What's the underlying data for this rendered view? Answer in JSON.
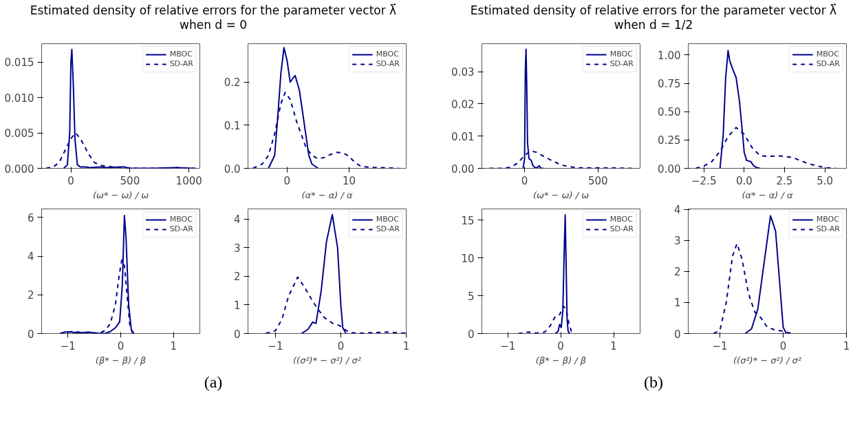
{
  "chart_data": [
    {
      "type": "line",
      "title": "Estimated density of relative errors for the parameter vector λ⃗",
      "subtitle": "when d = 0",
      "annotations": [
        "(a)"
      ],
      "xlabel": "(ω* − ω) / ω",
      "xlim": [
        -248,
        1092
      ],
      "xticks": [
        0,
        500,
        1000
      ],
      "ylim": [
        0,
        0.0176
      ],
      "yticks": [
        {
          "value": 0,
          "label": "0.000"
        },
        {
          "value": 0.005,
          "label": "0.005"
        },
        {
          "value": 0.01,
          "label": "0.010"
        },
        {
          "value": 0.015,
          "label": "0.015"
        }
      ],
      "legend": "top right",
      "series": [
        {
          "name": "MBOC",
          "color": "#00008b",
          "line_style": "solid",
          "x": [
            -60,
            -30,
            -10,
            0,
            8,
            20,
            35,
            55,
            80,
            120,
            160,
            250,
            300,
            420,
            450,
            500,
            700,
            900,
            1000,
            1050
          ],
          "values": [
            0,
            0.0005,
            0.005,
            0.015,
            0.0168,
            0.012,
            0.004,
            0.0005,
            0.0002,
            0.0002,
            0.0001,
            0.0002,
            0.0001,
            0.0002,
            0.0002,
            0,
            0,
            0.0001,
            0,
            0
          ]
        },
        {
          "name": "SD-AR",
          "color": "#00008b",
          "line_style": "dashed",
          "x": [
            -210,
            -150,
            -100,
            -50,
            0,
            40,
            80,
            150,
            200,
            260,
            350,
            450,
            500,
            800,
            900,
            1000,
            1080
          ],
          "values": [
            0,
            0.0002,
            0.0008,
            0.0025,
            0.0042,
            0.005,
            0.0042,
            0.002,
            0.0008,
            0.0004,
            0.0002,
            0.0001,
            0,
            0,
            0.0001,
            0,
            0
          ]
        }
      ]
    },
    {
      "type": "line",
      "xlabel": "(α* − α) / α",
      "xlim": [
        -6.3,
        19.2
      ],
      "xticks": [
        0,
        10
      ],
      "ylim": [
        0,
        0.289
      ],
      "yticks": [
        {
          "value": 0,
          "label": "0.0"
        },
        0.1,
        0.2
      ],
      "legend": "top right",
      "series": [
        {
          "name": "MBOC",
          "color": "#00008b",
          "line_style": "solid",
          "x": [
            -3,
            -2,
            -1.5,
            -1,
            -0.5,
            0,
            0.5,
            1,
            1.3,
            2,
            3,
            3.5,
            4,
            5
          ],
          "values": [
            0,
            0.03,
            0.12,
            0.22,
            0.28,
            0.25,
            0.2,
            0.21,
            0.215,
            0.18,
            0.08,
            0.03,
            0.01,
            0
          ]
        },
        {
          "name": "SD-AR",
          "color": "#00008b",
          "line_style": "dashed",
          "x": [
            -5.5,
            -4,
            -3,
            -2,
            -1,
            -0.3,
            0.5,
            1.5,
            3,
            4,
            5,
            6,
            7,
            8,
            9,
            10,
            11,
            12,
            14,
            16,
            18
          ],
          "values": [
            0,
            0.01,
            0.03,
            0.08,
            0.15,
            0.176,
            0.16,
            0.11,
            0.05,
            0.03,
            0.022,
            0.025,
            0.032,
            0.037,
            0.036,
            0.028,
            0.012,
            0.004,
            0.002,
            0.001,
            0
          ]
        }
      ]
    },
    {
      "type": "line",
      "xlabel": "(β* − β) / β",
      "xlim": [
        -1.5,
        1.5
      ],
      "xticks": [
        -1,
        0,
        1
      ],
      "ylim": [
        0,
        6.44
      ],
      "yticks": [
        0,
        2,
        4,
        6
      ],
      "legend": "top right",
      "series": [
        {
          "name": "MBOC",
          "color": "#00008b",
          "line_style": "solid",
          "x": [
            -1.15,
            -1.05,
            -0.95,
            -0.8,
            -0.7,
            -0.6,
            -0.5,
            -0.3,
            -0.2,
            -0.1,
            -0.02,
            0.03,
            0.07,
            0.1,
            0.15,
            0.2,
            0.25
          ],
          "values": [
            0,
            0.08,
            0.08,
            0.03,
            0.05,
            0.07,
            0.02,
            0,
            0.1,
            0.3,
            0.6,
            2.5,
            6.1,
            5,
            1.5,
            0.2,
            0
          ]
        },
        {
          "name": "SD-AR",
          "color": "#00008b",
          "line_style": "dashed",
          "x": [
            -1.15,
            -1,
            -0.9,
            -0.7,
            -0.6,
            -0.4,
            -0.3,
            -0.2,
            -0.1,
            -0.03,
            0.02,
            0.07,
            0.12,
            0.17,
            0.22,
            0.27
          ],
          "values": [
            0,
            0.08,
            0.1,
            0.05,
            0.06,
            0.02,
            0.15,
            0.5,
            1.5,
            3,
            3.8,
            3.5,
            2,
            0.5,
            0.05,
            0
          ]
        }
      ]
    },
    {
      "type": "line",
      "xlabel": "((σ²)* − σ²) / σ²",
      "xlim": [
        -1.42,
        1
      ],
      "xticks": [
        -1,
        0,
        1
      ],
      "ylim": [
        0,
        4.35
      ],
      "yticks": [
        0,
        1,
        2,
        3,
        4
      ],
      "legend": "top right",
      "series": [
        {
          "name": "MBOC",
          "color": "#00008b",
          "line_style": "solid",
          "x": [
            -0.6,
            -0.5,
            -0.43,
            -0.38,
            -0.3,
            -0.22,
            -0.13,
            -0.05,
            0,
            0.03,
            0.08
          ],
          "values": [
            0,
            0.15,
            0.4,
            0.35,
            1.5,
            3.2,
            4.15,
            3,
            1,
            0.2,
            0
          ]
        },
        {
          "name": "SD-AR",
          "color": "#00008b",
          "line_style": "dashed",
          "x": [
            -1.15,
            -1,
            -0.9,
            -0.8,
            -0.66,
            -0.55,
            -0.45,
            -0.35,
            -0.25,
            -0.12,
            -0.02,
            0.05,
            0.15,
            0.3,
            0.5,
            0.7,
            0.85,
            1
          ],
          "values": [
            0,
            0.1,
            0.5,
            1.3,
            1.97,
            1.6,
            1.2,
            0.85,
            0.55,
            0.35,
            0.28,
            0.15,
            0.03,
            0.01,
            0.03,
            0.05,
            0.03,
            0.01
          ]
        }
      ]
    },
    {
      "type": "line",
      "title": "Estimated density of relative errors for the parameter vector λ⃗",
      "subtitle": "when d = 1/2",
      "annotations": [
        "(b)"
      ],
      "xlabel": "(ω* − ω) / ω",
      "xlim": [
        -291,
        787
      ],
      "xticks": [
        0,
        500
      ],
      "ylim": [
        0,
        0.0387
      ],
      "yticks": [
        {
          "value": 0,
          "label": "0.00"
        },
        {
          "value": 0.01,
          "label": "0.01"
        },
        {
          "value": 0.02,
          "label": "0.02"
        },
        {
          "value": 0.03,
          "label": "0.03"
        }
      ],
      "legend": "top right",
      "series": [
        {
          "name": "MBOC",
          "color": "#00008b",
          "line_style": "solid",
          "x": [
            -10,
            0,
            5,
            10,
            15,
            20,
            30,
            45,
            55,
            70,
            85,
            100,
            110,
            130
          ],
          "values": [
            0,
            0.003,
            0.03,
            0.037,
            0.025,
            0.008,
            0.003,
            0.0025,
            0.001,
            0.0002,
            0.0002,
            0.0008,
            0,
            0
          ]
        },
        {
          "name": "SD-AR",
          "color": "#00008b",
          "line_style": "dashed",
          "x": [
            -240,
            -150,
            -100,
            -50,
            0,
            40,
            80,
            150,
            250,
            350,
            500,
            600,
            730
          ],
          "values": [
            0,
            0,
            0.0003,
            0.0015,
            0.004,
            0.0054,
            0.005,
            0.0032,
            0.001,
            0.0002,
            0.0001,
            0.0001,
            0
          ]
        }
      ]
    },
    {
      "type": "line",
      "xlabel": "(α* − α) / α",
      "xlim": [
        -3.47,
        6.34
      ],
      "xticks": [
        {
          "value": -2.5,
          "label": "−2.5"
        },
        {
          "value": 0,
          "label": "0.0"
        },
        {
          "value": 2.5,
          "label": "2.5"
        },
        {
          "value": 5,
          "label": "5.0"
        }
      ],
      "ylim": [
        0,
        1.1
      ],
      "yticks": [
        {
          "value": 0,
          "label": "0.00"
        },
        0.25,
        {
          "value": 0.5,
          "label": "0.50"
        },
        0.75,
        {
          "value": 1,
          "label": "1.00"
        }
      ],
      "legend": "top right",
      "series": [
        {
          "name": "MBOC",
          "color": "#00008b",
          "line_style": "solid",
          "x": [
            -1.5,
            -1.3,
            -1.15,
            -1,
            -0.9,
            -0.75,
            -0.5,
            -0.3,
            -0.1,
            0,
            0.15,
            0.4,
            0.6,
            0.8,
            1
          ],
          "values": [
            0,
            0.3,
            0.8,
            1.04,
            0.95,
            0.89,
            0.8,
            0.6,
            0.3,
            0.14,
            0.07,
            0.06,
            0.02,
            0.005,
            0
          ]
        },
        {
          "name": "SD-AR",
          "color": "#00008b",
          "line_style": "dashed",
          "x": [
            -3,
            -2.5,
            -2,
            -1.5,
            -1,
            -0.5,
            0,
            0.5,
            1,
            1.5,
            2.2,
            3,
            4,
            5,
            5.7
          ],
          "values": [
            0,
            0.02,
            0.06,
            0.15,
            0.28,
            0.36,
            0.3,
            0.18,
            0.11,
            0.105,
            0.11,
            0.095,
            0.04,
            0.005,
            0
          ]
        }
      ]
    },
    {
      "type": "line",
      "xlabel": "(β* − β) / β",
      "xlim": [
        -1.49,
        1.5
      ],
      "xticks": [
        -1,
        0,
        1
      ],
      "ylim": [
        0,
        16.5
      ],
      "yticks": [
        0,
        5,
        10,
        15
      ],
      "legend": "top right",
      "series": [
        {
          "name": "MBOC",
          "color": "#00008b",
          "line_style": "solid",
          "x": [
            -0.1,
            -0.05,
            -0.02,
            0.01,
            0.04,
            0.07,
            0.085,
            0.1,
            0.12,
            0.14,
            0.17
          ],
          "values": [
            0,
            0.3,
            1.2,
            0.8,
            3,
            12,
            15.7,
            10,
            2,
            0.3,
            0
          ]
        },
        {
          "name": "SD-AR",
          "color": "#00008b",
          "line_style": "dashed",
          "x": [
            -0.8,
            -0.6,
            -0.45,
            -0.3,
            -0.2,
            -0.1,
            -0.02,
            0.05,
            0.1,
            0.15,
            0.2,
            0.25
          ],
          "values": [
            0,
            0.2,
            0.05,
            0.2,
            1,
            2.3,
            2.5,
            3.6,
            3.3,
            1.5,
            0.3,
            0
          ]
        }
      ]
    },
    {
      "type": "line",
      "xlabel": "((σ²)* − σ²) / σ²",
      "xlim": [
        -1.5,
        1
      ],
      "xticks": [
        -1,
        0,
        1
      ],
      "ylim": [
        0,
        4.02
      ],
      "yticks": [
        0,
        1,
        2,
        3,
        4
      ],
      "legend": "top right",
      "series": [
        {
          "name": "MBOC",
          "color": "#00008b",
          "line_style": "solid",
          "x": [
            -0.6,
            -0.5,
            -0.4,
            -0.3,
            -0.2,
            -0.12,
            -0.05,
            0,
            0.05
          ],
          "values": [
            0,
            0.15,
            0.8,
            2.3,
            3.8,
            3.3,
            1.5,
            0.2,
            0
          ]
        },
        {
          "name": "SD-AR",
          "color": "#00008b",
          "line_style": "dashed",
          "x": [
            -1.1,
            -1,
            -0.9,
            -0.8,
            -0.73,
            -0.65,
            -0.55,
            -0.45,
            -0.35,
            -0.25,
            -0.1,
            0,
            0.1,
            0.17
          ],
          "values": [
            0,
            0.1,
            1,
            2.5,
            2.9,
            2.4,
            1.3,
            0.7,
            0.5,
            0.2,
            0.1,
            0.08,
            0.02,
            0
          ]
        }
      ]
    }
  ]
}
